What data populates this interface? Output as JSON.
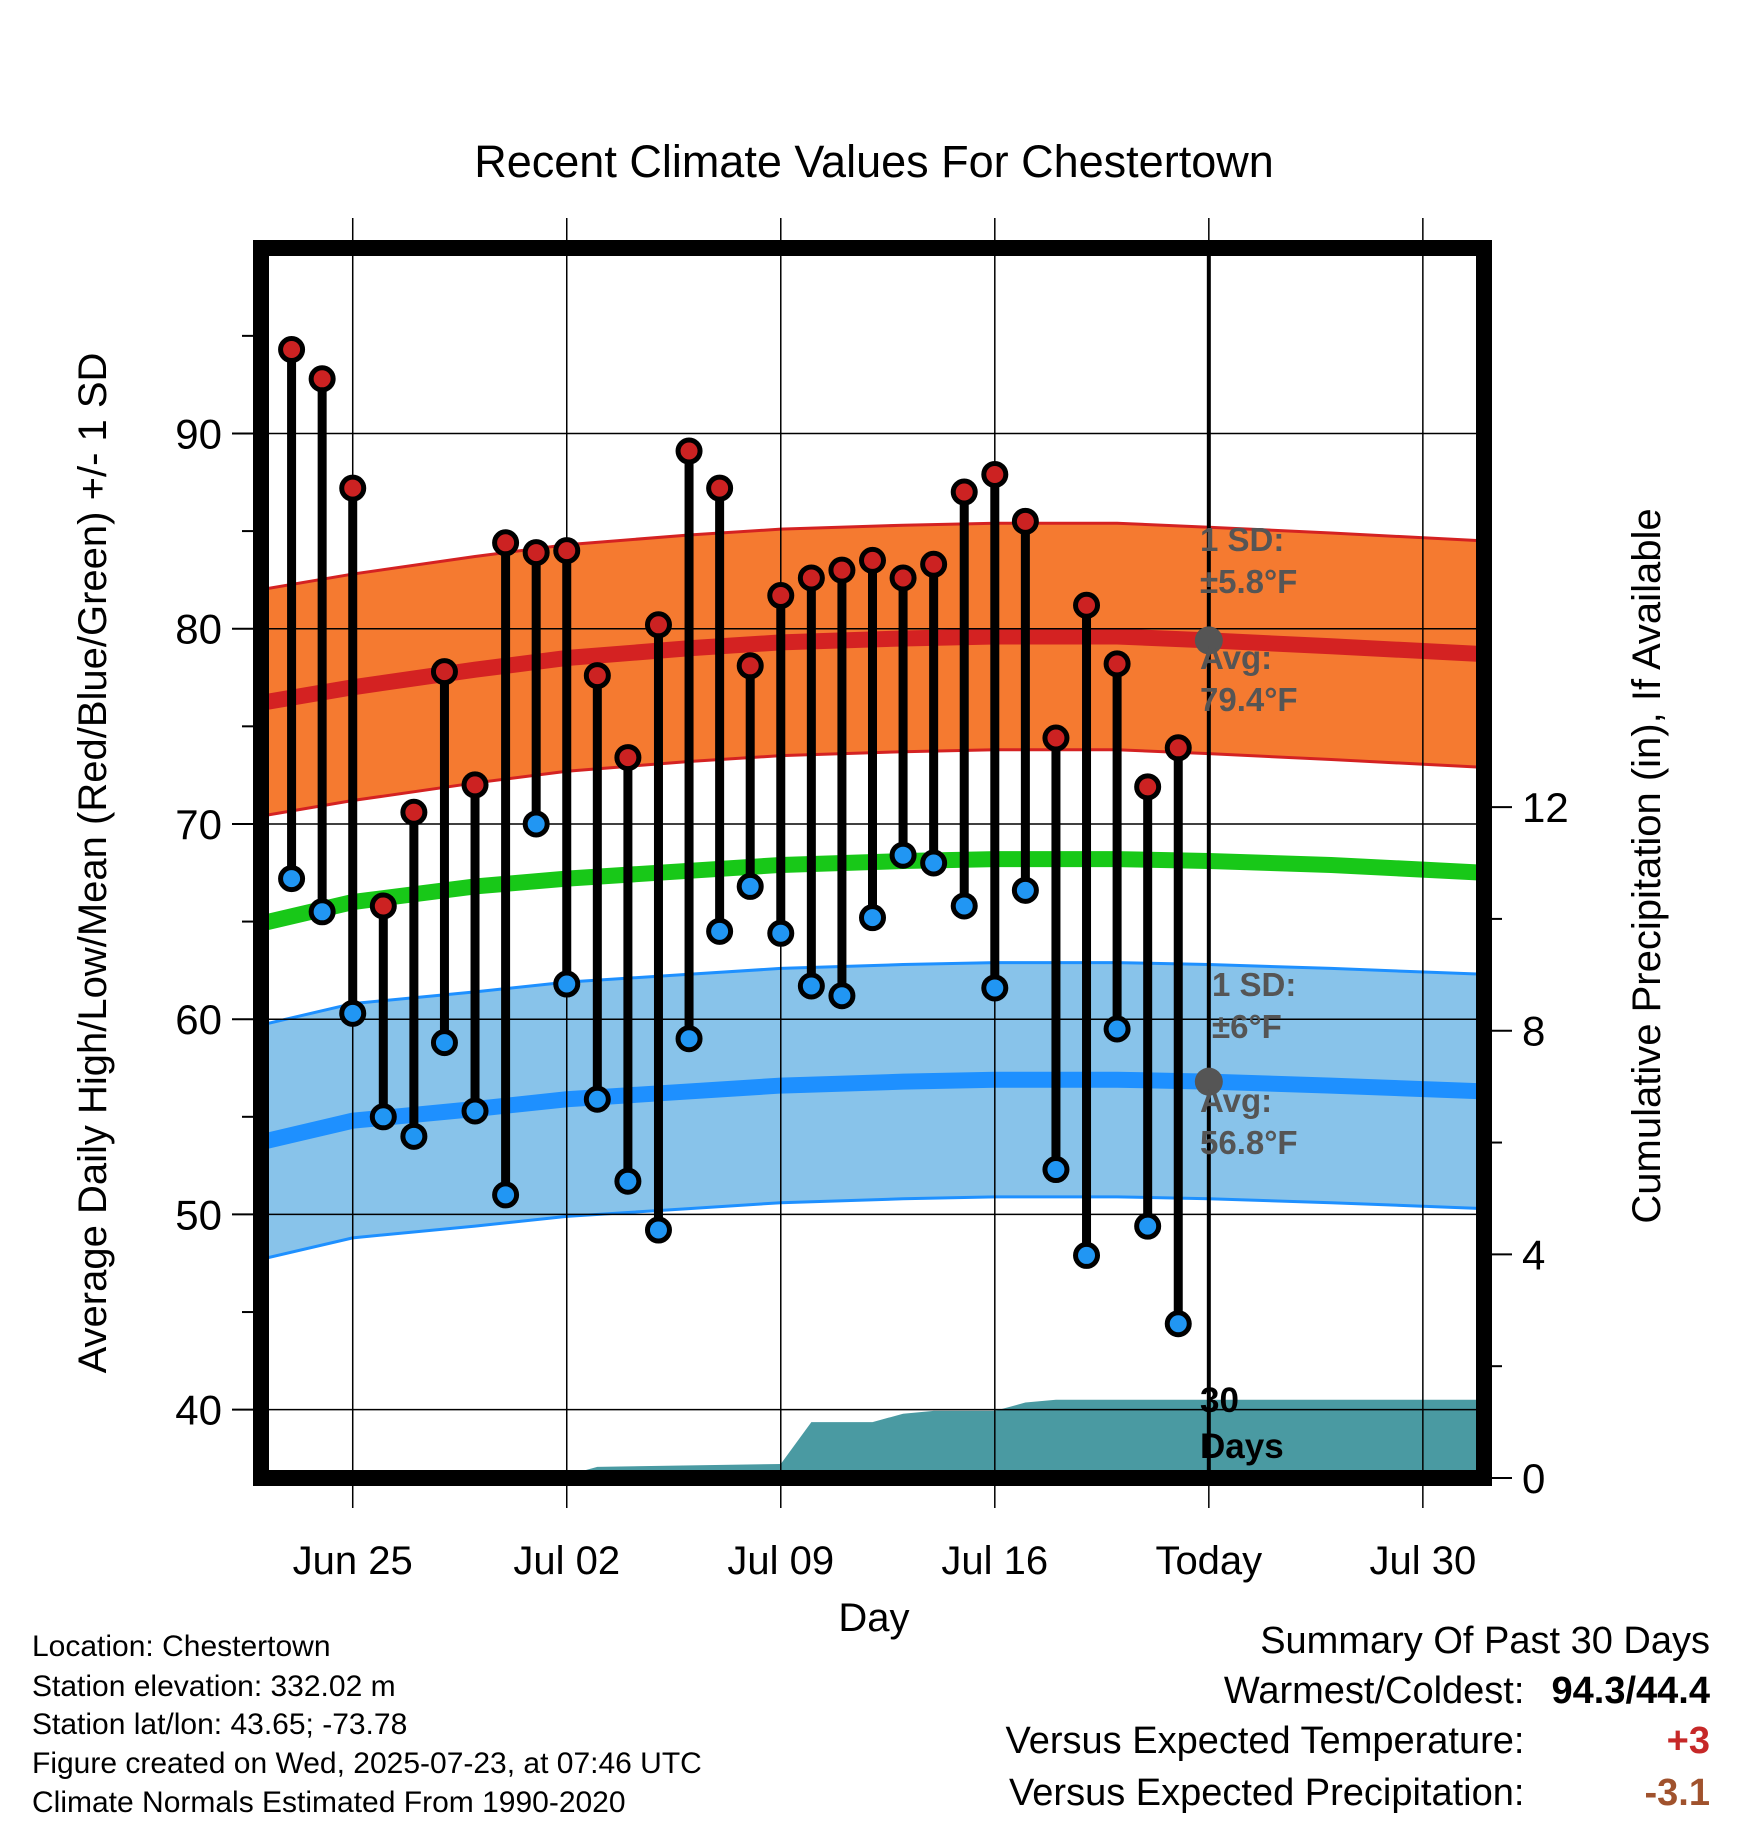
{
  "title": "Recent Climate Values For Chestertown",
  "chart_data": {
    "type": "line",
    "title": "Recent Climate Values For Chestertown",
    "xlabel": "Day",
    "ylabel": "Average Daily High/Low/Mean (Red/Blue/Green) +/- 1 SD",
    "y2label": "Cumulative Precipitation (in), If Available",
    "ylim": [
      36.5,
      99.5
    ],
    "y2lim": [
      0,
      22
    ],
    "y_ticks": [
      40,
      50,
      60,
      70,
      80,
      90
    ],
    "y2_ticks": [
      0,
      4,
      8,
      12
    ],
    "x_ticks": [
      "Jun 25",
      "Jul 02",
      "Jul 09",
      "Jul 16",
      "Today",
      "Jul 30"
    ],
    "grid": true,
    "today_label": "Today",
    "window_label": [
      "30",
      "Days"
    ],
    "daily": {
      "dates": [
        "Jun 23",
        "Jun 24",
        "Jun 25",
        "Jun 26",
        "Jun 27",
        "Jun 28",
        "Jun 29",
        "Jun 30",
        "Jul 01",
        "Jul 02",
        "Jul 03",
        "Jul 04",
        "Jul 05",
        "Jul 06",
        "Jul 07",
        "Jul 08",
        "Jul 09",
        "Jul 10",
        "Jul 11",
        "Jul 12",
        "Jul 13",
        "Jul 14",
        "Jul 15",
        "Jul 16",
        "Jul 17",
        "Jul 18",
        "Jul 19",
        "Jul 20",
        "Jul 21",
        "Jul 22"
      ],
      "high": [
        94.3,
        92.8,
        87.2,
        65.8,
        70.6,
        77.8,
        72.0,
        84.4,
        83.9,
        84.0,
        77.6,
        73.4,
        80.2,
        89.1,
        87.2,
        78.1,
        81.7,
        82.6,
        83.0,
        83.5,
        82.6,
        83.3,
        87.0,
        87.9,
        85.5,
        74.4,
        81.2,
        78.2,
        71.9,
        73.9
      ],
      "low": [
        67.2,
        65.5,
        60.3,
        55.0,
        54.0,
        58.8,
        55.3,
        51.0,
        70.0,
        61.8,
        55.9,
        51.7,
        49.2,
        59.0,
        64.5,
        66.8,
        64.4,
        61.7,
        61.2,
        65.2,
        68.4,
        68.0,
        65.8,
        61.6,
        66.6,
        52.3,
        47.9,
        59.5,
        49.4,
        44.4
      ]
    },
    "normals": {
      "dates": [
        "Jun 22",
        "Jun 25",
        "Jun 29",
        "Jul 02",
        "Jul 06",
        "Jul 09",
        "Jul 13",
        "Jul 16",
        "Jul 20",
        "Jul 23",
        "Jul 27",
        "Aug 01"
      ],
      "avg_high": [
        76.2,
        77.0,
        77.9,
        78.5,
        79.0,
        79.3,
        79.5,
        79.6,
        79.6,
        79.4,
        79.1,
        78.7
      ],
      "avg_mean": [
        64.9,
        66.0,
        66.8,
        67.2,
        67.6,
        67.9,
        68.1,
        68.2,
        68.2,
        68.1,
        67.9,
        67.5
      ],
      "avg_low": [
        53.7,
        54.8,
        55.4,
        55.9,
        56.3,
        56.6,
        56.8,
        56.9,
        56.9,
        56.8,
        56.6,
        56.3
      ]
    },
    "high_sd": 5.8,
    "low_sd": 6.0,
    "precip": {
      "dates": [
        "Jun 22",
        "Jul 01",
        "Jul 02",
        "Jul 03",
        "Jul 09",
        "Jul 10",
        "Jul 12",
        "Jul 13",
        "Jul 14",
        "Jul 15",
        "Jul 16",
        "Jul 17",
        "Jul 18",
        "Jul 22",
        "Jul 23",
        "Aug 01"
      ],
      "cumulative": [
        0,
        0,
        0.05,
        0.2,
        0.25,
        1.0,
        1.0,
        1.15,
        1.2,
        1.2,
        1.2,
        1.35,
        1.4,
        1.4,
        1.4,
        1.4
      ]
    },
    "annotations": {
      "high": {
        "sd_label": "1 SD:",
        "sd_value": "±5.8°F",
        "avg_label": "Avg:",
        "avg_value": "79.4°F",
        "today_avg": 79.4
      },
      "low": {
        "sd_label": "1 SD:",
        "sd_value": "±6°F",
        "avg_label": "Avg:",
        "avg_value": "56.8°F",
        "today_avg": 56.8
      }
    },
    "colors": {
      "high_band": "#f57a30",
      "high_line": "#d42222",
      "mean_line": "#18c818",
      "low_band": "#88c3ea",
      "low_line": "#1e90ff",
      "precip": "#4a9aa2",
      "high_dot": "#cc2222",
      "low_dot": "#2196f3",
      "today_dot": "#555555",
      "annotation_text": "#555555"
    }
  },
  "footer": {
    "location": "Location: Chestertown",
    "elevation": "Station elevation: 332.02 m",
    "latlon": "Station lat/lon: 43.65; -73.78",
    "created": "Figure created on Wed, 2025-07-23, at 07:46 UTC",
    "normals": "Climate Normals Estimated From 1990-2020"
  },
  "summary": {
    "heading": "Summary Of Past 30 Days",
    "extremes_label": "Warmest/Coldest:",
    "extremes_value": "94.3/44.4",
    "temp_label": "Versus Expected Temperature:",
    "temp_value": "+3",
    "precip_label": "Versus Expected Precipitation:",
    "precip_value": "-3.1",
    "temp_color": "#c62828",
    "precip_color": "#a0522d"
  }
}
